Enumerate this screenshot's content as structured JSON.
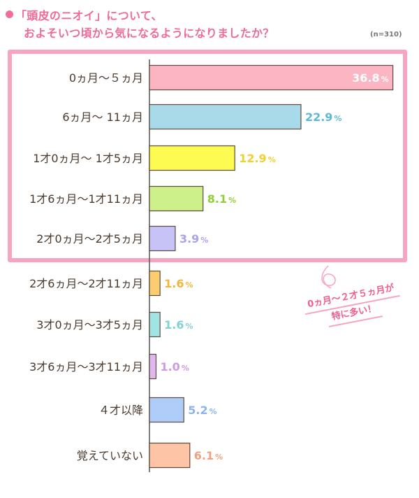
{
  "title": {
    "line1": "「頭皮のニオイ」について、",
    "line2": "およそいつ頃から気になるようになりましたか？"
  },
  "sample_size": "(n=310)",
  "annotation": {
    "line1": "0ヵ月〜２才５ヵ月が",
    "line2": "特に多い！"
  },
  "chart_data": {
    "type": "bar",
    "orientation": "horizontal",
    "title": "「頭皮のニオイ」について、およそいつ頃から気になるようになりましたか？",
    "xlabel": "",
    "ylabel": "",
    "xlim": [
      0,
      38
    ],
    "unit": "%",
    "categories": [
      "0ヵ月〜５ヵ月",
      "6ヵ月〜 11ヵ月",
      "1才0ヵ月〜 1才5ヵ月",
      "1才6ヵ月〜1才11ヵ月",
      "2才0ヵ月〜2才5ヵ月",
      "2才6ヵ月〜2才11ヵ月",
      "3才0ヵ月〜3才5ヵ月",
      "3才6ヵ月〜3才11ヵ月",
      "４才以降",
      "覚えていない"
    ],
    "values": [
      36.8,
      22.9,
      12.9,
      8.1,
      3.9,
      1.6,
      1.6,
      1.0,
      5.2,
      6.1
    ],
    "value_labels": [
      "36.8",
      "22.9",
      "12.9",
      "8.1",
      "3.9",
      "1.6",
      "1.6",
      "1.0",
      "5.2",
      "6.1"
    ],
    "bar_colors": [
      "#fbb5c3",
      "#a8daea",
      "#fdfb52",
      "#cdf08a",
      "#c7c3f7",
      "#fccd70",
      "#a2e4e4",
      "#e0b8ef",
      "#b0ccf9",
      "#fdc4a5"
    ],
    "label_colors": [
      "#ffffff",
      "#5fb8d3",
      "#f2d02e",
      "#8fcf39",
      "#a9a3ee",
      "#f4b53b",
      "#7fd2d2",
      "#cf9ae4",
      "#8db3ef",
      "#f6a07d"
    ],
    "inside_label": [
      true,
      false,
      false,
      false,
      false,
      false,
      false,
      false,
      false,
      false
    ]
  }
}
